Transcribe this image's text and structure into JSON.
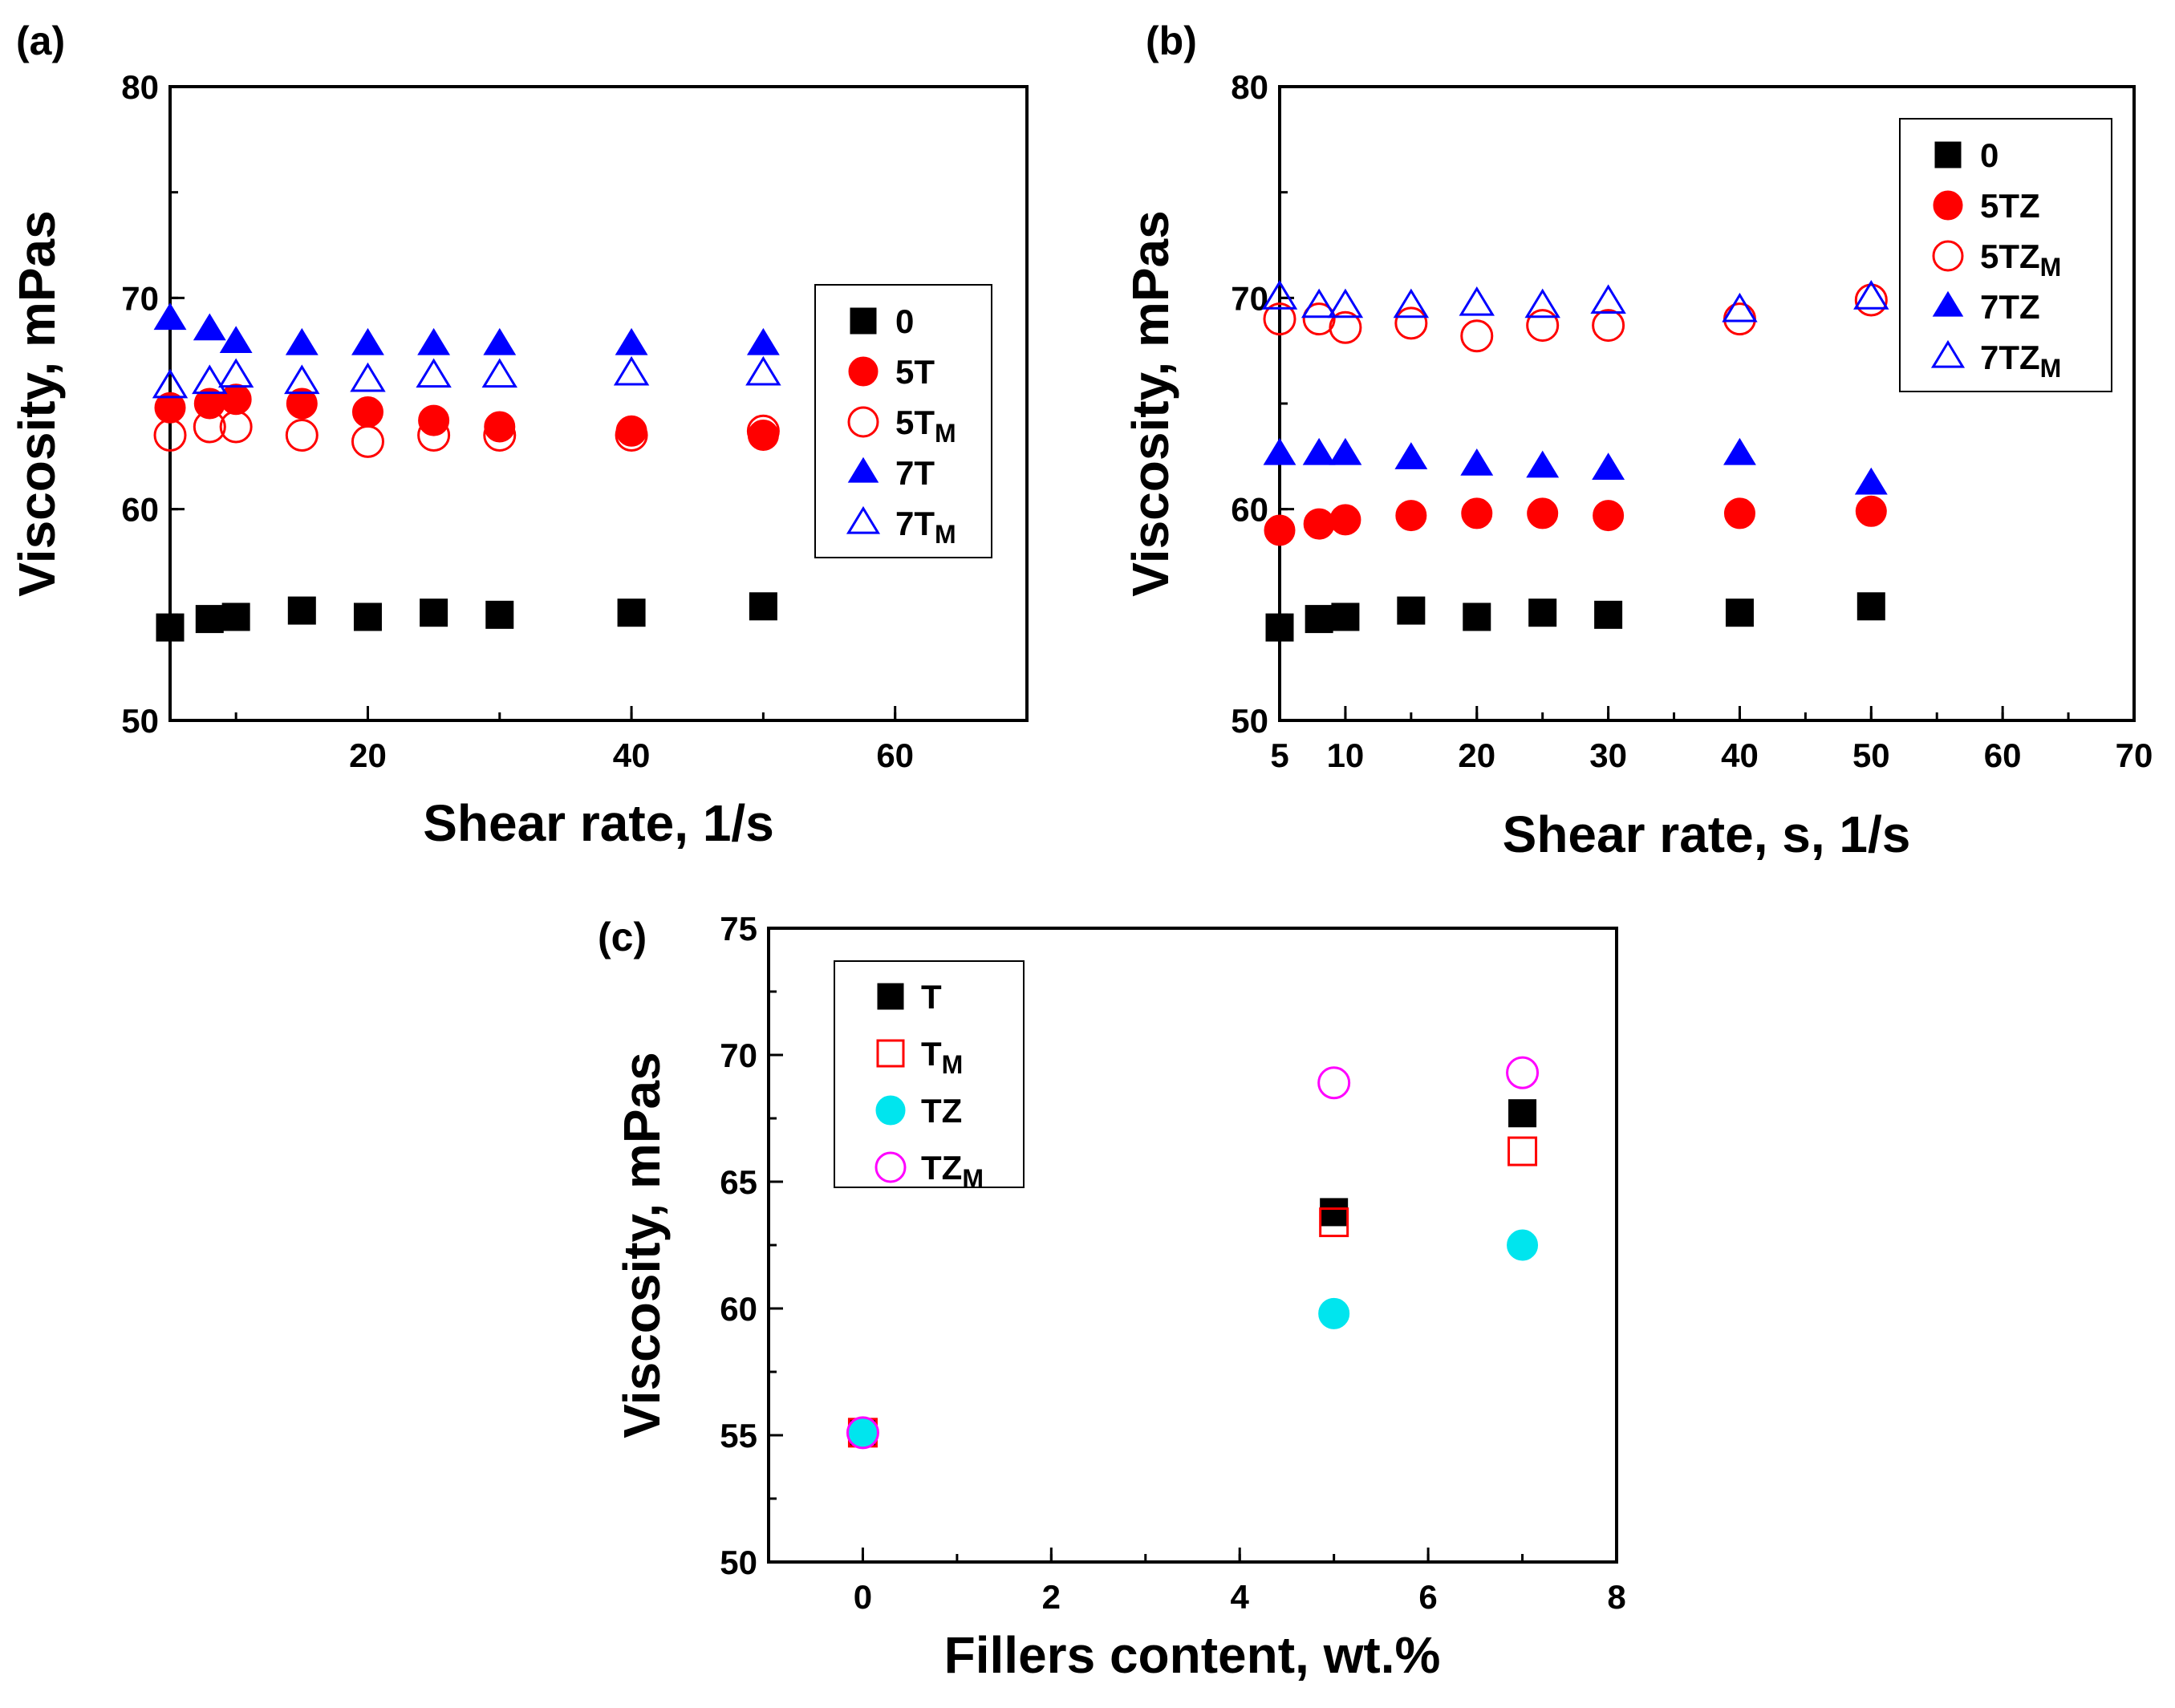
{
  "chart_data": [
    {
      "panel_label": "(a)",
      "type": "scatter",
      "xlabel": "Shear rate, 1/s",
      "ylabel": "Viscosity, mPas",
      "xlim": [
        5,
        70
      ],
      "ylim": [
        50,
        80
      ],
      "xticks": [
        20,
        40,
        60
      ],
      "yticks": [
        50,
        60,
        70,
        80
      ],
      "legend_position": "right",
      "series": [
        {
          "name": "0",
          "sub": "",
          "marker": "square",
          "fill": true,
          "color": "#000000",
          "x": [
            5,
            8,
            10,
            15,
            20,
            25,
            30,
            40,
            50
          ],
          "y": [
            54.4,
            54.8,
            54.9,
            55.2,
            54.9,
            55.1,
            55.0,
            55.1,
            55.4
          ]
        },
        {
          "name": "5T",
          "sub": "",
          "marker": "circle",
          "fill": true,
          "color": "#ff0000",
          "x": [
            5,
            8,
            10,
            15,
            20,
            25,
            30,
            40,
            50
          ],
          "y": [
            64.8,
            65.0,
            65.2,
            65.0,
            64.6,
            64.2,
            63.9,
            63.7,
            63.5
          ]
        },
        {
          "name": "5T",
          "sub": "M",
          "marker": "circle",
          "fill": false,
          "color": "#ff0000",
          "x": [
            5,
            8,
            10,
            15,
            20,
            25,
            30,
            40,
            50
          ],
          "y": [
            63.5,
            63.9,
            63.9,
            63.5,
            63.2,
            63.5,
            63.5,
            63.5,
            63.7
          ]
        },
        {
          "name": "7T",
          "sub": "",
          "marker": "triangle",
          "fill": true,
          "color": "#0000ff",
          "x": [
            5,
            8,
            10,
            15,
            20,
            25,
            30,
            40,
            50
          ],
          "y": [
            69.0,
            68.5,
            67.9,
            67.8,
            67.8,
            67.8,
            67.8,
            67.8,
            67.8
          ]
        },
        {
          "name": "7T",
          "sub": "M",
          "marker": "triangle",
          "fill": false,
          "color": "#0000ff",
          "x": [
            5,
            8,
            10,
            15,
            20,
            25,
            30,
            40,
            50
          ],
          "y": [
            65.8,
            66.0,
            66.3,
            66.0,
            66.1,
            66.3,
            66.3,
            66.4,
            66.4
          ]
        }
      ]
    },
    {
      "panel_label": "(b)",
      "type": "scatter",
      "xlabel": "Shear rate, s, 1/s",
      "ylabel": "Viscosity, mPas",
      "xlim": [
        5,
        70
      ],
      "ylim": [
        50,
        80
      ],
      "xticks": [
        5,
        10,
        20,
        30,
        40,
        50,
        60,
        70
      ],
      "yticks": [
        50,
        60,
        70,
        80
      ],
      "legend_position": "top-right",
      "series": [
        {
          "name": "0",
          "sub": "",
          "marker": "square",
          "fill": true,
          "color": "#000000",
          "x": [
            5,
            8,
            10,
            15,
            20,
            25,
            30,
            40,
            50
          ],
          "y": [
            54.4,
            54.8,
            54.9,
            55.2,
            54.9,
            55.1,
            55.0,
            55.1,
            55.4
          ]
        },
        {
          "name": "5TZ",
          "sub": "",
          "marker": "circle",
          "fill": true,
          "color": "#ff0000",
          "x": [
            5,
            8,
            10,
            15,
            20,
            25,
            30,
            40,
            50
          ],
          "y": [
            59.0,
            59.3,
            59.5,
            59.7,
            59.8,
            59.8,
            59.7,
            59.8,
            59.9
          ]
        },
        {
          "name": "5TZ",
          "sub": "M",
          "marker": "circle",
          "fill": false,
          "color": "#ff0000",
          "x": [
            5,
            8,
            10,
            15,
            20,
            25,
            30,
            40,
            50
          ],
          "y": [
            69.0,
            69.0,
            68.6,
            68.8,
            68.2,
            68.7,
            68.7,
            69.0,
            69.9
          ]
        },
        {
          "name": "7TZ",
          "sub": "",
          "marker": "triangle",
          "fill": true,
          "color": "#0000ff",
          "x": [
            5,
            8,
            10,
            15,
            20,
            25,
            30,
            40,
            50
          ],
          "y": [
            62.6,
            62.6,
            62.6,
            62.4,
            62.1,
            62.0,
            61.9,
            62.6,
            61.2
          ]
        },
        {
          "name": "7TZ",
          "sub": "M",
          "marker": "triangle",
          "fill": false,
          "color": "#0000ff",
          "x": [
            5,
            8,
            10,
            15,
            20,
            25,
            30,
            40,
            50
          ],
          "y": [
            70.0,
            69.6,
            69.6,
            69.6,
            69.7,
            69.6,
            69.8,
            69.4,
            70.0
          ]
        }
      ]
    },
    {
      "panel_label": "(c)",
      "type": "scatter",
      "xlabel": "Fillers content, wt.%",
      "ylabel": "Viscosity, mPas",
      "xlim": [
        -1,
        8
      ],
      "ylim": [
        50,
        75
      ],
      "xticks": [
        0,
        2,
        4,
        6,
        8
      ],
      "yticks": [
        50,
        55,
        60,
        65,
        70,
        75
      ],
      "legend_position": "top-left",
      "series": [
        {
          "name": "T",
          "sub": "",
          "marker": "square",
          "fill": true,
          "color": "#000000",
          "x": [
            0,
            5,
            7
          ],
          "y": [
            55.1,
            63.8,
            67.7
          ]
        },
        {
          "name": "T",
          "sub": "M",
          "marker": "square",
          "fill": false,
          "color": "#ff0000",
          "x": [
            0,
            5,
            7
          ],
          "y": [
            55.1,
            63.4,
            66.2
          ]
        },
        {
          "name": "TZ",
          "sub": "",
          "marker": "circle",
          "fill": true,
          "color": "#00e5ee",
          "x": [
            0,
            5,
            7
          ],
          "y": [
            55.1,
            59.8,
            62.5
          ]
        },
        {
          "name": "TZ",
          "sub": "M",
          "marker": "circle",
          "fill": false,
          "color": "#ff00ff",
          "x": [
            0,
            5,
            7
          ],
          "y": [
            55.1,
            68.9,
            69.3
          ]
        }
      ]
    }
  ]
}
